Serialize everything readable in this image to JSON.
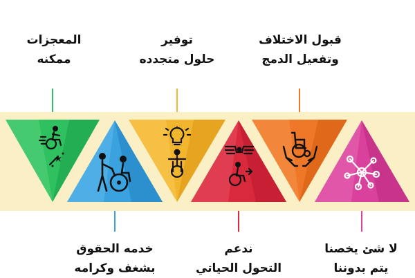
{
  "items": [
    {
      "line1": "المعجزات",
      "line2": "ممكنه",
      "color": "#2fc060",
      "icon": "wheelchair-racer-sparkle-icon"
    },
    {
      "line1": "خدمه الحقوق",
      "line2": "بشغف وكرامه",
      "color": "#3aa2de",
      "icon": "caregiver-pushing-wheelchair-icon"
    },
    {
      "line1": "توفير",
      "line2": "حلول متجدده",
      "color": "#f2b52e",
      "icon": "lightbulb-wheelchair-user-icon"
    },
    {
      "line1": "ندعم",
      "line2": "التحول الحياتي",
      "color": "#d9293d",
      "icon": "winged-wheelchair-icon"
    },
    {
      "line1": "قبول الاختلاف",
      "line2": "وتفعيل الدمج",
      "color": "#ee7728",
      "icon": "hands-holding-wheelchair-icon"
    },
    {
      "line1": "لا شئ يخصنا",
      "line2": "يتم بدوننا",
      "color": "#d9419c",
      "icon": "network-nodes-icon"
    }
  ],
  "colors": {
    "band": "#fbf0c5",
    "text": "#111111"
  }
}
